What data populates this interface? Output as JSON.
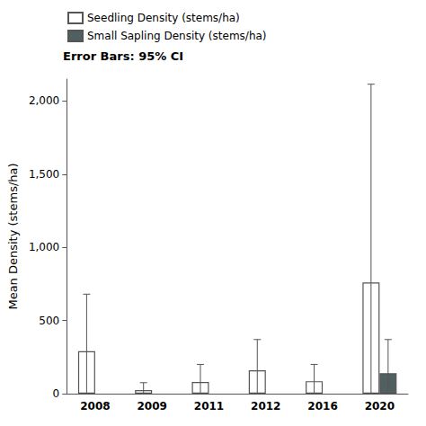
{
  "chart_data": {
    "type": "bar",
    "ylabel": "Mean Density (stems/ha)",
    "categories": [
      "2008",
      "2009",
      "2011",
      "2012",
      "2016",
      "2020"
    ],
    "series": [
      {
        "name": "Seedling Density (stems/ha)",
        "color": "#ffffff",
        "values": [
          290,
          25,
          80,
          160,
          85,
          760
        ],
        "error_minus": [
          290,
          25,
          80,
          160,
          85,
          760
        ],
        "error_plus": [
          390,
          50,
          120,
          210,
          115,
          1355
        ]
      },
      {
        "name": "Small Sapling Density (stems/ha)",
        "color": "#506060",
        "values": [
          null,
          null,
          null,
          null,
          null,
          140
        ],
        "error_minus": [
          null,
          null,
          null,
          null,
          null,
          140
        ],
        "error_plus": [
          null,
          null,
          null,
          null,
          null,
          230
        ]
      }
    ],
    "ylim": [
      0,
      2150
    ],
    "yticks": [
      0,
      500,
      {
        "value": 1000,
        "label": "1,000"
      },
      {
        "value": 1500,
        "label": "1,500"
      },
      {
        "value": 2000,
        "label": "2,000"
      }
    ],
    "grid": false,
    "legend": "upper left",
    "annotation": "Error Bars: 95% CI"
  }
}
